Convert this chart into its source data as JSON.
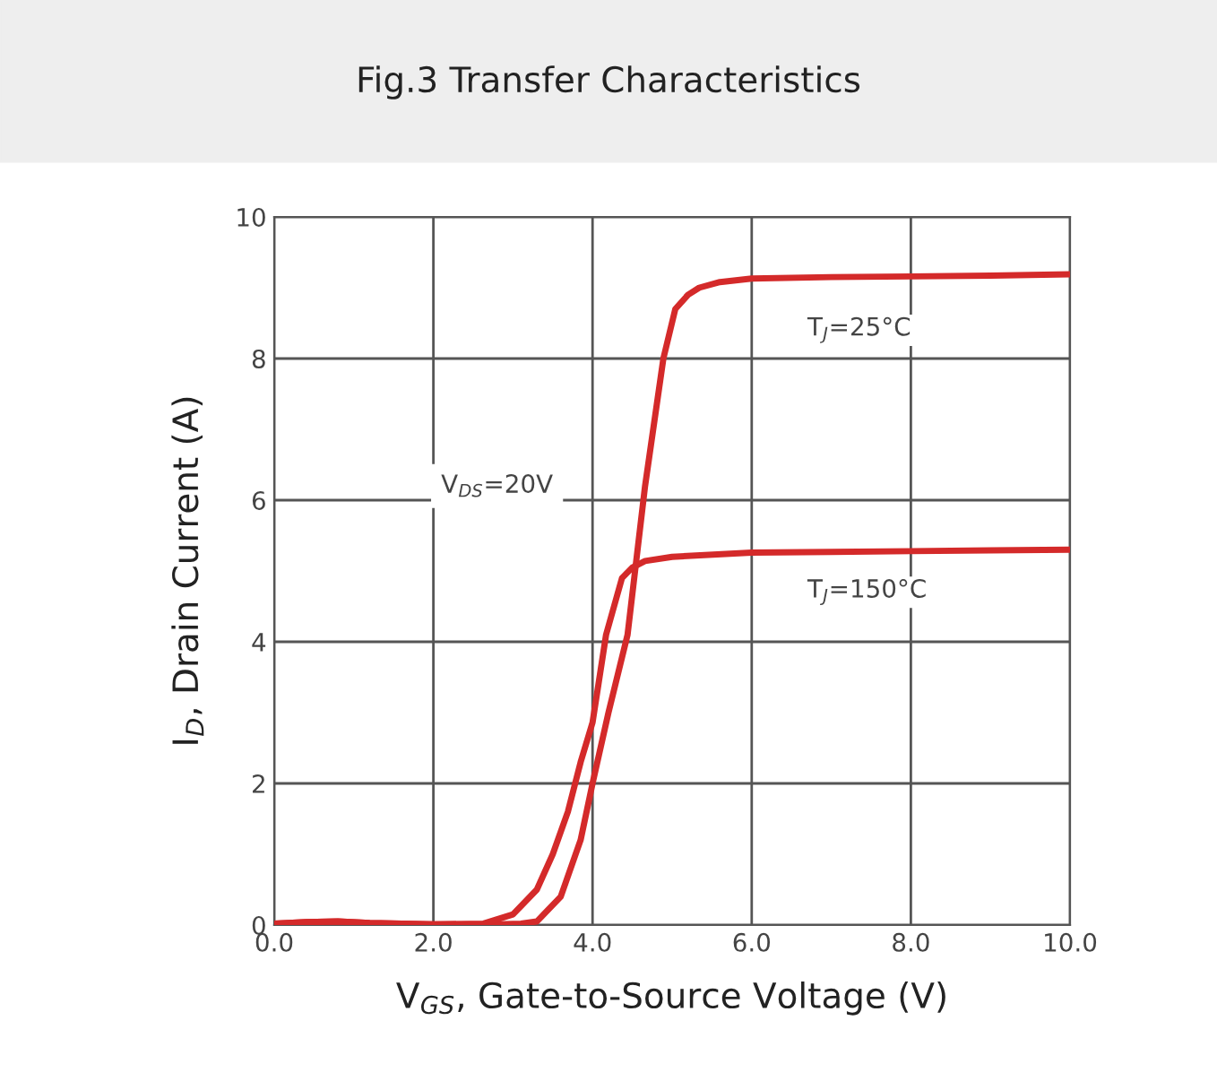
{
  "chart_data": {
    "type": "line",
    "title": "Fig.3 Transfer Characteristics",
    "xlabel": "V$_{GS}$, Gate-to-Source Voltage (V)",
    "ylabel": "I$_{D}$, Drain Current (A)",
    "annotations": [
      "V$_{DS}$=20V"
    ],
    "series": [
      {
        "name": "T$_{J}$=25°C",
        "color": "#d42a2a",
        "x": [
          0,
          0.4,
          0.8,
          1.2,
          2.0,
          2.8,
          3.1,
          3.3,
          3.6,
          3.85,
          4.0,
          4.2,
          4.44,
          4.66,
          4.89,
          5.04,
          5.2,
          5.34,
          5.6,
          6.0,
          7.0,
          8.0,
          9.0,
          10.0
        ],
        "values": [
          0.02,
          0.04,
          0.05,
          0.03,
          0.01,
          0.01,
          0.02,
          0.05,
          0.4,
          1.2,
          2.0,
          3.0,
          4.1,
          6.2,
          8.0,
          8.7,
          8.9,
          9.0,
          9.08,
          9.13,
          9.15,
          9.16,
          9.17,
          9.19
        ]
      },
      {
        "name": "T$_{J}$=150°C",
        "color": "#d42a2a",
        "x": [
          0,
          0.4,
          0.8,
          1.2,
          2.0,
          2.63,
          3.0,
          3.3,
          3.5,
          3.69,
          3.85,
          4.0,
          4.17,
          4.37,
          4.5,
          4.66,
          5.0,
          6.0,
          7.0,
          8.0,
          9.0,
          10.0
        ],
        "values": [
          0.02,
          0.04,
          0.05,
          0.03,
          0.01,
          0.02,
          0.15,
          0.5,
          1.0,
          1.6,
          2.3,
          2.86,
          4.1,
          4.9,
          5.05,
          5.14,
          5.2,
          5.26,
          5.27,
          5.28,
          5.29,
          5.3
        ]
      }
    ],
    "xlim": [
      0,
      10
    ],
    "ylim": [
      0,
      10
    ],
    "xticks": [
      {
        "value": 0,
        "label": "0.0"
      },
      {
        "value": 2,
        "label": "2.0"
      },
      {
        "value": 4,
        "label": "4.0"
      },
      {
        "value": 6,
        "label": "6.0"
      },
      {
        "value": 8,
        "label": "8.0"
      },
      {
        "value": 10,
        "label": "10.0"
      }
    ],
    "yticks": [
      0,
      2,
      4,
      6,
      8,
      10
    ],
    "grid": true,
    "legend": false,
    "marker": "none",
    "line_style": "solid"
  }
}
